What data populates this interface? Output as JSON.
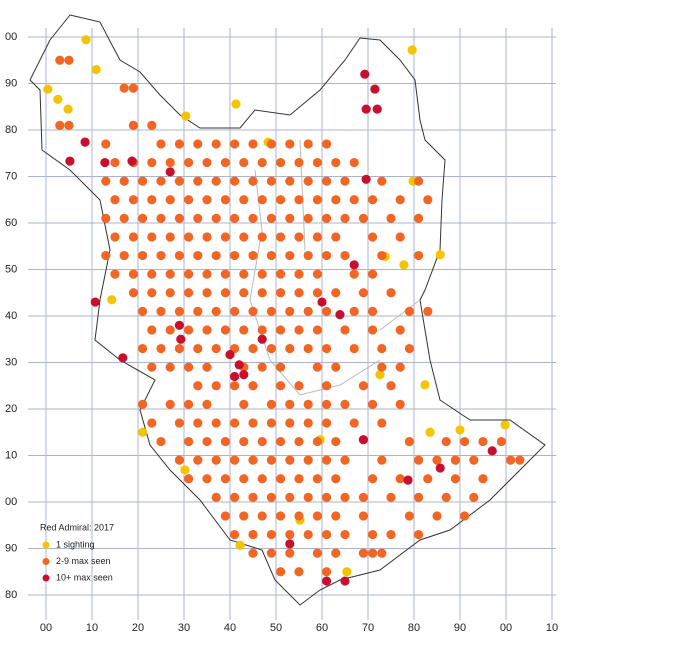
{
  "chart_data": {
    "type": "scatter",
    "legend_title": "Red Admiral:  2017",
    "xlim": [
      0,
      110
    ],
    "ylim": [
      -20,
      100
    ],
    "xticks": [
      {
        "value": 0,
        "label": "00"
      },
      10,
      20,
      30,
      40,
      50,
      60,
      70,
      80,
      90,
      {
        "value": 100,
        "label": "00"
      },
      {
        "value": 110,
        "label": "10"
      }
    ],
    "yticks": [
      {
        "value": -20,
        "label": "80"
      },
      {
        "value": -10,
        "label": "90"
      },
      {
        "value": 0,
        "label": "00"
      },
      10,
      20,
      30,
      40,
      50,
      60,
      70,
      80,
      90,
      {
        "value": 100,
        "label": "00"
      }
    ],
    "grid": true,
    "series": [
      {
        "name": "1 sighting",
        "color": "#f5c400",
        "x": [
          8.7,
          10.9,
          0.4,
          2.6,
          4.8,
          41.3,
          30.4,
          48.3,
          79.6,
          79.8,
          73.7,
          77.8,
          85.7,
          21,
          83.5,
          99.8,
          90,
          65.4,
          42.2,
          72.6,
          82.4,
          14.3,
          55.2,
          30.2,
          59.6
        ],
        "values": [
          99.4,
          93,
          88.8,
          86.6,
          84.5,
          85.6,
          83,
          77.4,
          97.2,
          69,
          52.8,
          51,
          53.2,
          15,
          15,
          16.6,
          15.5,
          -15,
          -9.3,
          27.4,
          25.2,
          43.5,
          -3.9,
          6.9,
          13.4
        ]
      },
      {
        "name": "2-9 max seen",
        "color": "#f26522",
        "x": [
          3,
          5,
          17,
          19,
          3,
          5,
          19,
          23,
          13,
          25,
          29,
          33,
          37,
          41,
          45,
          49,
          53,
          57,
          61,
          15,
          19,
          23,
          27,
          31,
          35,
          39,
          43,
          47,
          51,
          55,
          59,
          63,
          67,
          13,
          17,
          21,
          25,
          29,
          33,
          37,
          41,
          45,
          49,
          53,
          57,
          61,
          65,
          73,
          81,
          15,
          19,
          23,
          27,
          31,
          35,
          39,
          43,
          47,
          51,
          55,
          59,
          63,
          67,
          71,
          77,
          83,
          13,
          17,
          21,
          25,
          29,
          33,
          37,
          41,
          45,
          49,
          53,
          57,
          61,
          65,
          69,
          75,
          81,
          15,
          19,
          23,
          27,
          31,
          35,
          39,
          43,
          47,
          51,
          55,
          59,
          63,
          71,
          77,
          13,
          17,
          21,
          25,
          29,
          33,
          37,
          41,
          45,
          49,
          53,
          57,
          61,
          65,
          73,
          81,
          15,
          19,
          23,
          27,
          31,
          35,
          39,
          43,
          47,
          51,
          55,
          59,
          67,
          71,
          19,
          23,
          27,
          31,
          35,
          39,
          43,
          47,
          51,
          55,
          59,
          63,
          69,
          75,
          21,
          25,
          29,
          33,
          37,
          41,
          45,
          49,
          53,
          57,
          61,
          67,
          71,
          79,
          83,
          23,
          27,
          31,
          35,
          39,
          43,
          47,
          51,
          55,
          59,
          65,
          71,
          77,
          21,
          25,
          29,
          33,
          37,
          41,
          45,
          49,
          53,
          57,
          61,
          67,
          73,
          79,
          23,
          27,
          31,
          35,
          43,
          47,
          51,
          59,
          63,
          73,
          77,
          33,
          37,
          41,
          45,
          51,
          55,
          61,
          69,
          75,
          21,
          27,
          31,
          35,
          43,
          49,
          53,
          57,
          61,
          65,
          71,
          77,
          23,
          29,
          33,
          37,
          41,
          45,
          49,
          53,
          57,
          61,
          67,
          73,
          25,
          31,
          35,
          39,
          43,
          47,
          51,
          55,
          59,
          63,
          79,
          87,
          91,
          95,
          99,
          29,
          33,
          37,
          41,
          45,
          49,
          53,
          57,
          61,
          65,
          73,
          81,
          85,
          89,
          93,
          101,
          103,
          31,
          35,
          39,
          43,
          47,
          51,
          55,
          59,
          63,
          71,
          77,
          83,
          89,
          95,
          37,
          41,
          45,
          49,
          53,
          57,
          61,
          65,
          69,
          75,
          81,
          87,
          93,
          39,
          43,
          47,
          51,
          55,
          59,
          63,
          69,
          79,
          85,
          91,
          41,
          45,
          49,
          53,
          57,
          61,
          65,
          71,
          75,
          81,
          45,
          49,
          53,
          59,
          63,
          69,
          71,
          73,
          51,
          55,
          61
        ],
        "values": [
          95,
          95,
          89,
          89,
          81,
          81,
          81,
          81,
          77,
          77,
          77,
          77,
          77,
          77,
          77,
          77,
          77,
          77,
          77,
          73,
          73,
          73,
          73,
          73,
          73,
          73,
          73,
          73,
          73,
          73,
          73,
          73,
          73,
          69,
          69,
          69,
          69,
          69,
          69,
          69,
          69,
          69,
          69,
          69,
          69,
          69,
          69,
          69,
          69,
          65,
          65,
          65,
          65,
          65,
          65,
          65,
          65,
          65,
          65,
          65,
          65,
          65,
          65,
          65,
          65,
          65,
          61,
          61,
          61,
          61,
          61,
          61,
          61,
          61,
          61,
          61,
          61,
          61,
          61,
          61,
          61,
          61,
          61,
          57,
          57,
          57,
          57,
          57,
          57,
          57,
          57,
          57,
          57,
          57,
          57,
          57,
          57,
          57,
          53,
          53,
          53,
          53,
          53,
          53,
          53,
          53,
          53,
          53,
          53,
          53,
          53,
          53,
          53,
          53,
          49,
          49,
          49,
          49,
          49,
          49,
          49,
          49,
          49,
          49,
          49,
          49,
          49,
          49,
          45,
          45,
          45,
          45,
          45,
          45,
          45,
          45,
          45,
          45,
          45,
          45,
          45,
          45,
          41,
          41,
          41,
          41,
          41,
          41,
          41,
          41,
          41,
          41,
          41,
          41,
          41,
          41,
          41,
          37,
          37,
          37,
          37,
          37,
          37,
          37,
          37,
          37,
          37,
          37,
          37,
          37,
          33,
          33,
          33,
          33,
          33,
          33,
          33,
          33,
          33,
          33,
          33,
          33,
          33,
          33,
          29,
          29,
          29,
          29,
          29,
          29,
          29,
          29,
          29,
          29,
          29,
          25,
          25,
          25,
          25,
          25,
          25,
          25,
          25,
          25,
          21,
          21,
          21,
          21,
          21,
          21,
          21,
          21,
          21,
          21,
          21,
          21,
          17,
          17,
          17,
          17,
          17,
          17,
          17,
          17,
          17,
          17,
          17,
          17,
          13,
          13,
          13,
          13,
          13,
          13,
          13,
          13,
          13,
          13,
          13,
          13,
          13,
          13,
          13,
          9,
          9,
          9,
          9,
          9,
          9,
          9,
          9,
          9,
          9,
          9,
          9,
          9,
          9,
          9,
          9,
          9,
          5,
          5,
          5,
          5,
          5,
          5,
          5,
          5,
          5,
          5,
          5,
          5,
          5,
          5,
          1,
          1,
          1,
          1,
          1,
          1,
          1,
          1,
          1,
          1,
          1,
          1,
          1,
          -3,
          -3,
          -3,
          -3,
          -3,
          -3,
          -3,
          -3,
          -3,
          -3,
          -3,
          -7,
          -7,
          -7,
          -7,
          -7,
          -7,
          -7,
          -7,
          -7,
          -7,
          -11,
          -11,
          -11,
          -11,
          -11,
          -11,
          -11,
          -11,
          -15,
          -15,
          -15
        ]
      },
      {
        "name": "10+ max seen",
        "color": "#c8102e",
        "x": [
          12.8,
          18.7,
          27,
          10.7,
          16.7,
          29,
          29.3,
          40,
          42,
          41,
          43,
          53,
          61,
          65,
          69.3,
          71.5,
          69.6,
          72,
          69.6,
          69,
          85.7,
          97,
          78.7,
          60,
          63.9,
          67,
          47,
          5.2,
          8.5
        ],
        "values": [
          73,
          73.3,
          71,
          43,
          31,
          38,
          35,
          31.7,
          29.5,
          27,
          27.4,
          -9,
          -17,
          -17,
          92,
          88.8,
          84.5,
          84.5,
          69.4,
          13.4,
          7.3,
          11,
          4.7,
          43,
          40.3,
          51,
          35,
          73.3,
          77.4
        ]
      }
    ]
  }
}
